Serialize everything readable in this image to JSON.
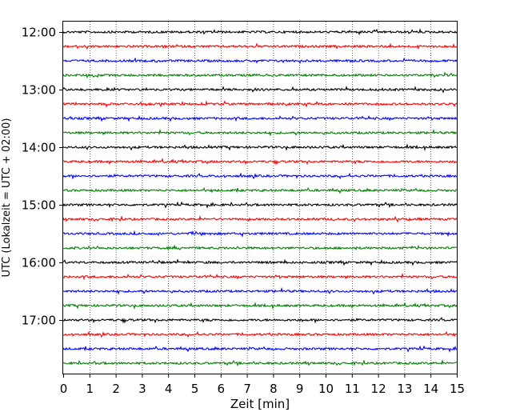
{
  "chart_data": {
    "type": "line",
    "title": "",
    "xlabel": "Zeit  [min]",
    "ylabel": "UTC (Lokalzeit = UTC + 02:00)",
    "xlim": [
      0,
      15
    ],
    "x_ticks": [
      "0",
      "1",
      "2",
      "3",
      "4",
      "5",
      "6",
      "7",
      "8",
      "9",
      "10",
      "11",
      "12",
      "13",
      "14",
      "15"
    ],
    "y_ticks": [
      "12:00",
      "13:00",
      "14:00",
      "15:00",
      "16:00",
      "17:00"
    ],
    "y_tick_values": [
      0,
      4,
      8,
      12,
      16,
      20
    ],
    "row_count": 24,
    "row_minutes": 15,
    "row_colors": [
      "#000000",
      "#ff0000",
      "#0000ff",
      "#008000"
    ],
    "vertical_grid": true,
    "grid_style": "dotted",
    "traces": "continuous seismograph-style noise traces, one per 15-minute interval from 12:00 to 17:45 UTC"
  }
}
